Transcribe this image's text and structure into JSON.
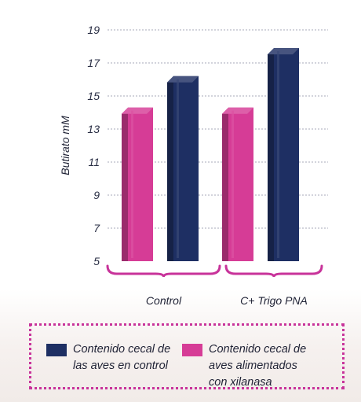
{
  "chart_data": {
    "type": "bar",
    "categories": [
      "Control",
      "C+ Trigo PNA"
    ],
    "series": [
      {
        "name": "Contenido cecal de aves alimentados con xilanasa",
        "values": [
          14.3,
          14.3
        ],
        "color": "#d63c96"
      },
      {
        "name": "Contenido cecal de las aves en control",
        "values": [
          16.2,
          17.9
        ],
        "color": "#1e2f63"
      }
    ],
    "ylabel": "Butirato mM",
    "xlabel": "",
    "ylim": [
      5,
      19
    ],
    "yticks": [
      5,
      7,
      9,
      11,
      13,
      15,
      17,
      19
    ],
    "grid": "horizontal-dashed",
    "legend_position": "bottom"
  },
  "legend": {
    "items": [
      {
        "label": "Contenido cecal de las aves en control",
        "color": "#1e2f63"
      },
      {
        "label": "Contenido cecal de aves alimentados con xilanasa",
        "color": "#d63c96"
      }
    ]
  }
}
